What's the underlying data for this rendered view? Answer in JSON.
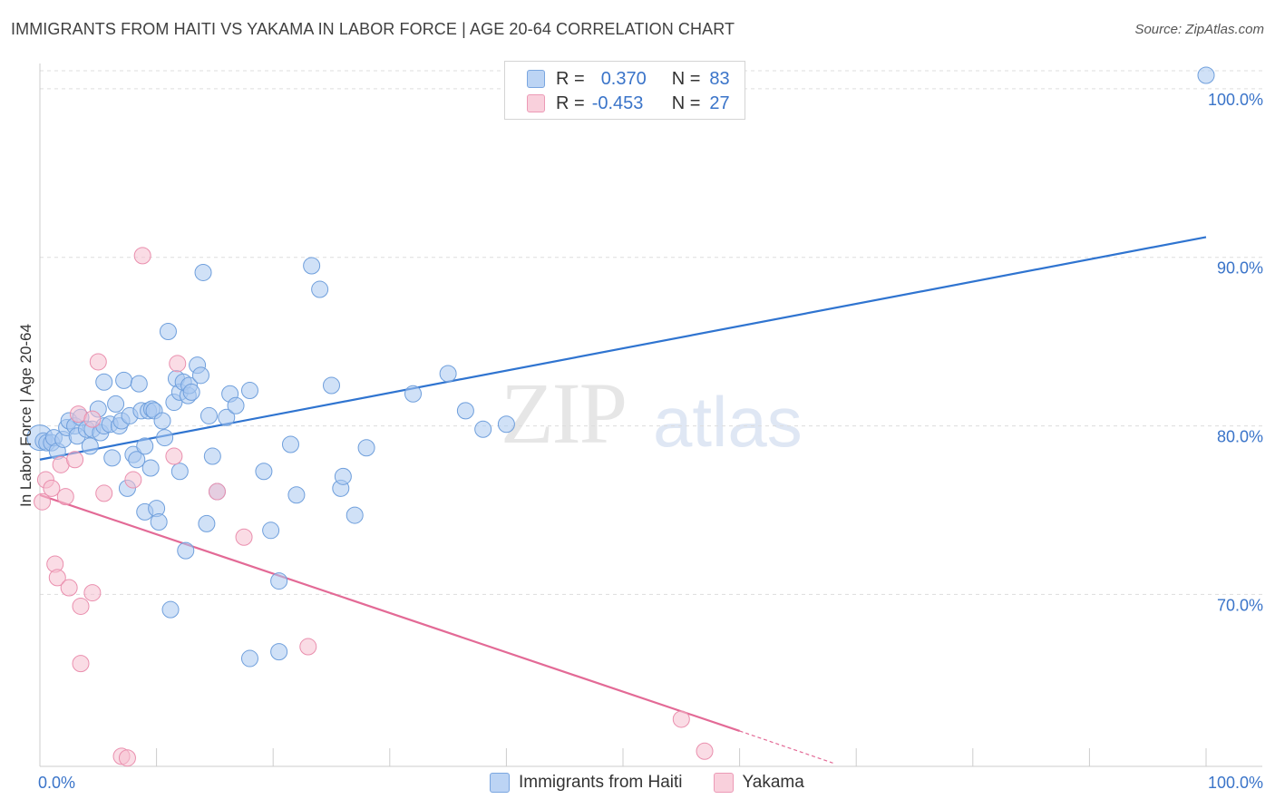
{
  "title": "IMMIGRANTS FROM HAITI VS YAKAMA IN LABOR FORCE | AGE 20-64 CORRELATION CHART",
  "source": "Source: ZipAtlas.com",
  "watermark": {
    "zip": "ZIP",
    "atlas": "atlas"
  },
  "legend_box": {
    "rows": [
      {
        "r_label": "R =",
        "r_value": "0.370",
        "n_label": "N =",
        "n_value": "83",
        "color": "#aac8f0"
      },
      {
        "r_label": "R =",
        "r_value": "-0.453",
        "n_label": "N =",
        "n_value": "27",
        "color": "#f6bfd0"
      }
    ]
  },
  "bottom_legend": [
    "Immigrants from Haiti",
    "Yakama"
  ],
  "colors": {
    "blue_fill": "#aac8f0",
    "blue_stroke": "#6f9fdc",
    "blue_line": "#2f74d0",
    "pink_fill": "#f6bfd0",
    "pink_stroke": "#ea8fae",
    "pink_line": "#e36a96",
    "grid": "#dddddd",
    "axis_text": "#3a74c9"
  },
  "chart_data": {
    "type": "scatter",
    "title": "IMMIGRANTS FROM HAITI VS YAKAMA IN LABOR FORCE | AGE 20-64 CORRELATION CHART",
    "ylabel": "In Labor Force | Age 20-64",
    "xlim": [
      0,
      100
    ],
    "ylim": [
      59.8,
      101.5
    ],
    "x_tick_labels": [
      "0.0%",
      "100.0%"
    ],
    "y_ticks": [
      100,
      90,
      80,
      70
    ],
    "y_tick_labels": [
      "100.0%",
      "90.0%",
      "80.0%",
      "70.0%"
    ],
    "series": [
      {
        "name": "Immigrants from Haiti",
        "points": [
          [
            0,
            79.3
          ],
          [
            0.3,
            79.1
          ],
          [
            0.6,
            79.0
          ],
          [
            1.0,
            79.0
          ],
          [
            1.2,
            79.3
          ],
          [
            1.5,
            78.5
          ],
          [
            2.0,
            79.2
          ],
          [
            2.3,
            79.9
          ],
          [
            2.5,
            80.3
          ],
          [
            3.0,
            80.0
          ],
          [
            3.2,
            79.4
          ],
          [
            3.5,
            80.5
          ],
          [
            4.0,
            79.8
          ],
          [
            4.5,
            79.8
          ],
          [
            4.3,
            78.8
          ],
          [
            5.0,
            81.0
          ],
          [
            5.2,
            79.6
          ],
          [
            5.5,
            80.0
          ],
          [
            6.0,
            80.1
          ],
          [
            6.5,
            81.3
          ],
          [
            6.2,
            78.1
          ],
          [
            6.8,
            80.0
          ],
          [
            7.0,
            80.3
          ],
          [
            5.5,
            82.6
          ],
          [
            7.2,
            82.7
          ],
          [
            7.5,
            76.3
          ],
          [
            7.7,
            80.6
          ],
          [
            8.0,
            78.3
          ],
          [
            8.3,
            78.0
          ],
          [
            8.5,
            82.5
          ],
          [
            8.7,
            80.9
          ],
          [
            9.0,
            78.8
          ],
          [
            9.0,
            74.9
          ],
          [
            9.3,
            80.9
          ],
          [
            9.5,
            77.5
          ],
          [
            9.6,
            81.0
          ],
          [
            9.8,
            80.9
          ],
          [
            10.0,
            75.1
          ],
          [
            10.2,
            74.3
          ],
          [
            10.5,
            80.3
          ],
          [
            10.7,
            79.3
          ],
          [
            11.0,
            85.6
          ],
          [
            11.2,
            69.1
          ],
          [
            11.5,
            81.4
          ],
          [
            11.7,
            82.8
          ],
          [
            12.0,
            82.0
          ],
          [
            12.0,
            77.3
          ],
          [
            12.3,
            82.6
          ],
          [
            12.5,
            72.6
          ],
          [
            12.7,
            81.8
          ],
          [
            12.8,
            82.4
          ],
          [
            13.0,
            82.0
          ],
          [
            13.5,
            83.6
          ],
          [
            13.8,
            83.0
          ],
          [
            14.0,
            89.1
          ],
          [
            14.3,
            74.2
          ],
          [
            14.5,
            80.6
          ],
          [
            14.8,
            78.2
          ],
          [
            15.2,
            76.1
          ],
          [
            16.0,
            80.5
          ],
          [
            16.3,
            81.9
          ],
          [
            16.8,
            81.2
          ],
          [
            18.0,
            82.1
          ],
          [
            18.0,
            66.2
          ],
          [
            19.2,
            77.3
          ],
          [
            19.8,
            73.8
          ],
          [
            20.5,
            70.8
          ],
          [
            20.5,
            66.6
          ],
          [
            21.5,
            78.9
          ],
          [
            22.0,
            75.9
          ],
          [
            23.3,
            89.5
          ],
          [
            24.0,
            88.1
          ],
          [
            25.0,
            82.4
          ],
          [
            25.8,
            76.3
          ],
          [
            26.0,
            77.0
          ],
          [
            27.0,
            74.7
          ],
          [
            28.0,
            78.7
          ],
          [
            32.0,
            81.9
          ],
          [
            35.0,
            83.1
          ],
          [
            36.5,
            80.9
          ],
          [
            38.0,
            79.8
          ],
          [
            40.0,
            80.1
          ],
          [
            100.0,
            100.8
          ]
        ]
      },
      {
        "name": "Yakama",
        "points": [
          [
            0.2,
            75.5
          ],
          [
            0.5,
            76.8
          ],
          [
            1.0,
            76.3
          ],
          [
            1.3,
            71.8
          ],
          [
            1.5,
            71.0
          ],
          [
            1.8,
            77.7
          ],
          [
            2.2,
            75.8
          ],
          [
            2.5,
            70.4
          ],
          [
            3.0,
            78.0
          ],
          [
            3.3,
            80.7
          ],
          [
            3.5,
            65.9
          ],
          [
            3.5,
            69.3
          ],
          [
            4.5,
            70.1
          ],
          [
            4.5,
            80.4
          ],
          [
            5.0,
            83.8
          ],
          [
            5.5,
            76.0
          ],
          [
            7.0,
            60.4
          ],
          [
            7.5,
            60.3
          ],
          [
            8.0,
            76.8
          ],
          [
            8.8,
            90.1
          ],
          [
            11.5,
            78.2
          ],
          [
            11.8,
            83.7
          ],
          [
            15.2,
            76.1
          ],
          [
            17.5,
            73.4
          ],
          [
            23.0,
            66.9
          ],
          [
            55.0,
            62.6
          ],
          [
            57.0,
            60.7
          ]
        ]
      }
    ],
    "trendlines": [
      {
        "series": "Immigrants from Haiti",
        "x": [
          0,
          100
        ],
        "y": [
          78.0,
          91.2
        ],
        "style": "solid"
      },
      {
        "series": "Yakama",
        "x": [
          0,
          60
        ],
        "y": [
          75.9,
          61.9
        ],
        "style": "solid"
      },
      {
        "series": "Yakama",
        "x": [
          60,
          68
        ],
        "y": [
          61.9,
          60.0
        ],
        "style": "dashed"
      }
    ]
  }
}
